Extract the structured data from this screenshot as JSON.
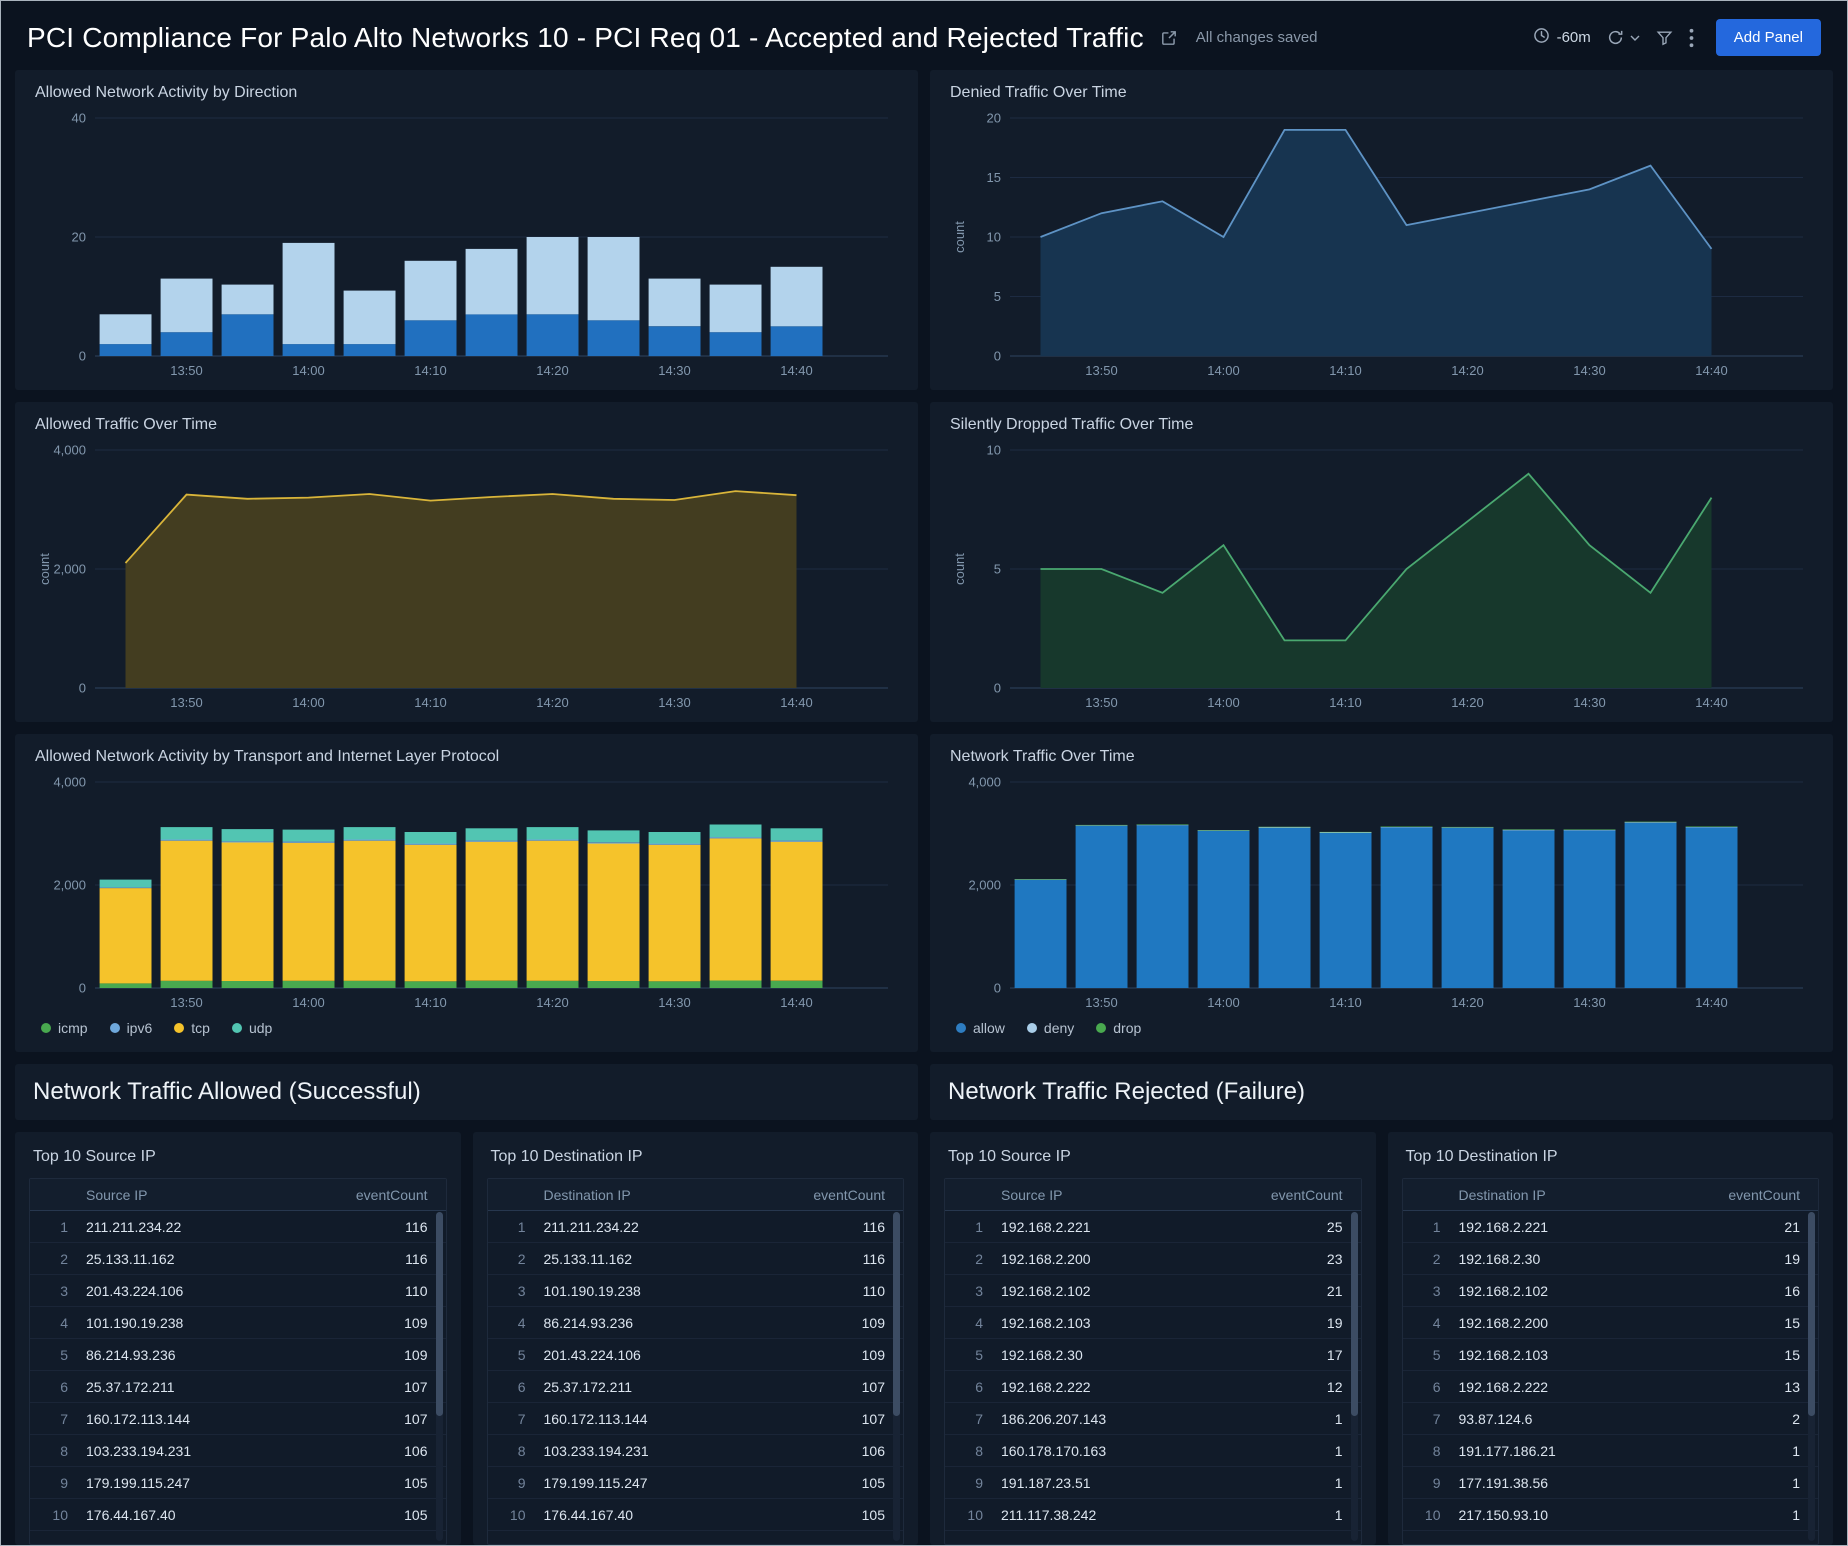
{
  "header": {
    "title": "PCI Compliance For Palo Alto Networks 10 - PCI Req 01 - Accepted and Rejected Traffic",
    "saved_status": "All changes saved",
    "time_range": "-60m",
    "add_panel_label": "Add Panel"
  },
  "sections": {
    "allowed": "Network Traffic Allowed (Successful)",
    "rejected": "Network Traffic Rejected (Failure)"
  },
  "chart_data": [
    {
      "type": "bar",
      "title": "Allowed Network Activity by Direction",
      "x": [
        "13:45",
        "13:50",
        "13:55",
        "14:00",
        "14:05",
        "14:10",
        "14:15",
        "14:20",
        "14:25",
        "14:30",
        "14:35",
        "14:40"
      ],
      "xticks": [
        "13:50",
        "14:00",
        "14:10",
        "14:20",
        "14:30",
        "14:40"
      ],
      "ylim": [
        0,
        40
      ],
      "yticks": [
        0,
        20,
        40
      ],
      "series": [
        {
          "color": "#2170bf",
          "values": [
            2,
            4,
            7,
            2,
            2,
            6,
            7,
            7,
            6,
            5,
            4,
            5
          ]
        },
        {
          "color": "#b3d3ec",
          "values": [
            5,
            9,
            5,
            17,
            9,
            10,
            11,
            13,
            14,
            8,
            8,
            10
          ]
        }
      ]
    },
    {
      "type": "area",
      "title": "Denied Traffic Over Time",
      "ylabel": "count",
      "x": [
        "13:45",
        "13:50",
        "13:55",
        "14:00",
        "14:05",
        "14:10",
        "14:15",
        "14:20",
        "14:25",
        "14:30",
        "14:35",
        "14:40"
      ],
      "xticks": [
        "13:50",
        "14:00",
        "14:10",
        "14:20",
        "14:30",
        "14:40"
      ],
      "ylim": [
        0,
        20
      ],
      "yticks": [
        0,
        5,
        10,
        15,
        20
      ],
      "series": [
        {
          "color": "#5e93c5",
          "fill": "#173450",
          "values": [
            10,
            12,
            13,
            10,
            19,
            19,
            11,
            12,
            13,
            14,
            16,
            9
          ]
        }
      ]
    },
    {
      "type": "area",
      "title": "Allowed Traffic Over Time",
      "ylabel": "count",
      "x": [
        "13:45",
        "13:50",
        "13:55",
        "14:00",
        "14:05",
        "14:10",
        "14:15",
        "14:20",
        "14:25",
        "14:30",
        "14:35",
        "14:40"
      ],
      "xticks": [
        "13:50",
        "14:00",
        "14:10",
        "14:20",
        "14:30",
        "14:40"
      ],
      "ylim": [
        0,
        4000
      ],
      "yticks": [
        0,
        2000,
        4000
      ],
      "series": [
        {
          "color": "#d9b53a",
          "fill": "#433d20",
          "values": [
            2100,
            3250,
            3180,
            3200,
            3260,
            3150,
            3210,
            3260,
            3180,
            3160,
            3310,
            3240
          ]
        }
      ]
    },
    {
      "type": "area",
      "title": "Silently Dropped Traffic Over Time",
      "ylabel": "count",
      "x": [
        "13:45",
        "13:50",
        "13:55",
        "14:00",
        "14:05",
        "14:10",
        "14:15",
        "14:20",
        "14:25",
        "14:30",
        "14:35",
        "14:40"
      ],
      "xticks": [
        "13:50",
        "14:00",
        "14:10",
        "14:20",
        "14:30",
        "14:40"
      ],
      "ylim": [
        0,
        10
      ],
      "yticks": [
        0,
        5,
        10
      ],
      "series": [
        {
          "color": "#4aa870",
          "fill": "#17382c",
          "values": [
            5,
            5,
            4,
            6,
            2,
            2,
            5,
            7,
            9,
            6,
            4,
            8
          ]
        }
      ]
    },
    {
      "type": "bar",
      "title": "Allowed Network Activity by Transport and Internet Layer Protocol",
      "x": [
        "13:45",
        "13:50",
        "13:55",
        "14:00",
        "14:05",
        "14:10",
        "14:15",
        "14:20",
        "14:25",
        "14:30",
        "14:35",
        "14:40"
      ],
      "xticks": [
        "13:50",
        "14:00",
        "14:10",
        "14:20",
        "14:30",
        "14:40"
      ],
      "ylim": [
        0,
        4000
      ],
      "yticks": [
        0,
        2000,
        4000
      ],
      "series": [
        {
          "name": "icmp",
          "color": "#49a94f",
          "values": [
            90,
            140,
            135,
            140,
            140,
            130,
            140,
            140,
            135,
            130,
            145,
            140
          ]
        },
        {
          "name": "tcp",
          "color": "#f5c32b",
          "values": [
            1850,
            2720,
            2690,
            2680,
            2720,
            2650,
            2700,
            2720,
            2670,
            2650,
            2760,
            2700
          ]
        },
        {
          "name": "ipv6",
          "color": "#6fa8dc",
          "values": [
            15,
            25,
            25,
            25,
            25,
            25,
            25,
            25,
            25,
            25,
            25,
            25
          ]
        },
        {
          "name": "udp",
          "color": "#52c5b2",
          "values": [
            150,
            240,
            235,
            230,
            240,
            225,
            235,
            240,
            230,
            225,
            245,
            235
          ]
        }
      ],
      "legend": [
        {
          "label": "icmp",
          "color": "#49a94f"
        },
        {
          "label": "ipv6",
          "color": "#6fa8dc"
        },
        {
          "label": "tcp",
          "color": "#f5c32b"
        },
        {
          "label": "udp",
          "color": "#52c5b2"
        }
      ]
    },
    {
      "type": "bar",
      "title": "Network Traffic Over Time",
      "x": [
        "13:45",
        "13:50",
        "13:55",
        "14:00",
        "14:05",
        "14:10",
        "14:15",
        "14:20",
        "14:25",
        "14:30",
        "14:35",
        "14:40"
      ],
      "xticks": [
        "13:50",
        "14:00",
        "14:10",
        "14:20",
        "14:30",
        "14:40"
      ],
      "ylim": [
        0,
        4000
      ],
      "yticks": [
        0,
        2000,
        4000
      ],
      "series": [
        {
          "name": "allow",
          "color": "#1f78c1",
          "values": [
            2100,
            3150,
            3160,
            3050,
            3110,
            3010,
            3120,
            3110,
            3060,
            3060,
            3210,
            3120
          ]
        },
        {
          "name": "deny",
          "color": "#a9cde8",
          "values": [
            10,
            12,
            13,
            10,
            19,
            19,
            11,
            12,
            13,
            14,
            16,
            9
          ]
        },
        {
          "name": "drop",
          "color": "#49a94f",
          "values": [
            5,
            5,
            4,
            6,
            2,
            2,
            5,
            7,
            9,
            6,
            4,
            8
          ]
        }
      ],
      "legend": [
        {
          "label": "allow",
          "color": "#2e7dc1"
        },
        {
          "label": "deny",
          "color": "#a9cde8"
        },
        {
          "label": "drop",
          "color": "#49a94f"
        }
      ]
    }
  ],
  "tables": [
    {
      "title": "Top 10 Source IP",
      "columns": [
        "Source IP",
        "eventCount"
      ],
      "rows": [
        [
          "211.211.234.22",
          116
        ],
        [
          "25.133.11.162",
          116
        ],
        [
          "201.43.224.106",
          110
        ],
        [
          "101.190.19.238",
          109
        ],
        [
          "86.214.93.236",
          109
        ],
        [
          "25.37.172.211",
          107
        ],
        [
          "160.172.113.144",
          107
        ],
        [
          "103.233.194.231",
          106
        ],
        [
          "179.199.115.247",
          105
        ],
        [
          "176.44.167.40",
          105
        ]
      ]
    },
    {
      "title": "Top 10 Destination IP",
      "columns": [
        "Destination IP",
        "eventCount"
      ],
      "rows": [
        [
          "211.211.234.22",
          116
        ],
        [
          "25.133.11.162",
          116
        ],
        [
          "101.190.19.238",
          110
        ],
        [
          "86.214.93.236",
          109
        ],
        [
          "201.43.224.106",
          109
        ],
        [
          "25.37.172.211",
          107
        ],
        [
          "160.172.113.144",
          107
        ],
        [
          "103.233.194.231",
          106
        ],
        [
          "179.199.115.247",
          105
        ],
        [
          "176.44.167.40",
          105
        ]
      ]
    },
    {
      "title": "Top 10 Source IP",
      "columns": [
        "Source IP",
        "eventCount"
      ],
      "rows": [
        [
          "192.168.2.221",
          25
        ],
        [
          "192.168.2.200",
          23
        ],
        [
          "192.168.2.102",
          21
        ],
        [
          "192.168.2.103",
          19
        ],
        [
          "192.168.2.30",
          17
        ],
        [
          "192.168.2.222",
          12
        ],
        [
          "186.206.207.143",
          1
        ],
        [
          "160.178.170.163",
          1
        ],
        [
          "191.187.23.51",
          1
        ],
        [
          "211.117.38.242",
          1
        ]
      ]
    },
    {
      "title": "Top 10 Destination IP",
      "columns": [
        "Destination IP",
        "eventCount"
      ],
      "rows": [
        [
          "192.168.2.221",
          21
        ],
        [
          "192.168.2.30",
          19
        ],
        [
          "192.168.2.102",
          16
        ],
        [
          "192.168.2.200",
          15
        ],
        [
          "192.168.2.103",
          15
        ],
        [
          "192.168.2.222",
          13
        ],
        [
          "93.87.124.6",
          2
        ],
        [
          "191.177.186.21",
          1
        ],
        [
          "177.191.38.56",
          1
        ],
        [
          "217.150.93.10",
          1
        ]
      ]
    }
  ]
}
